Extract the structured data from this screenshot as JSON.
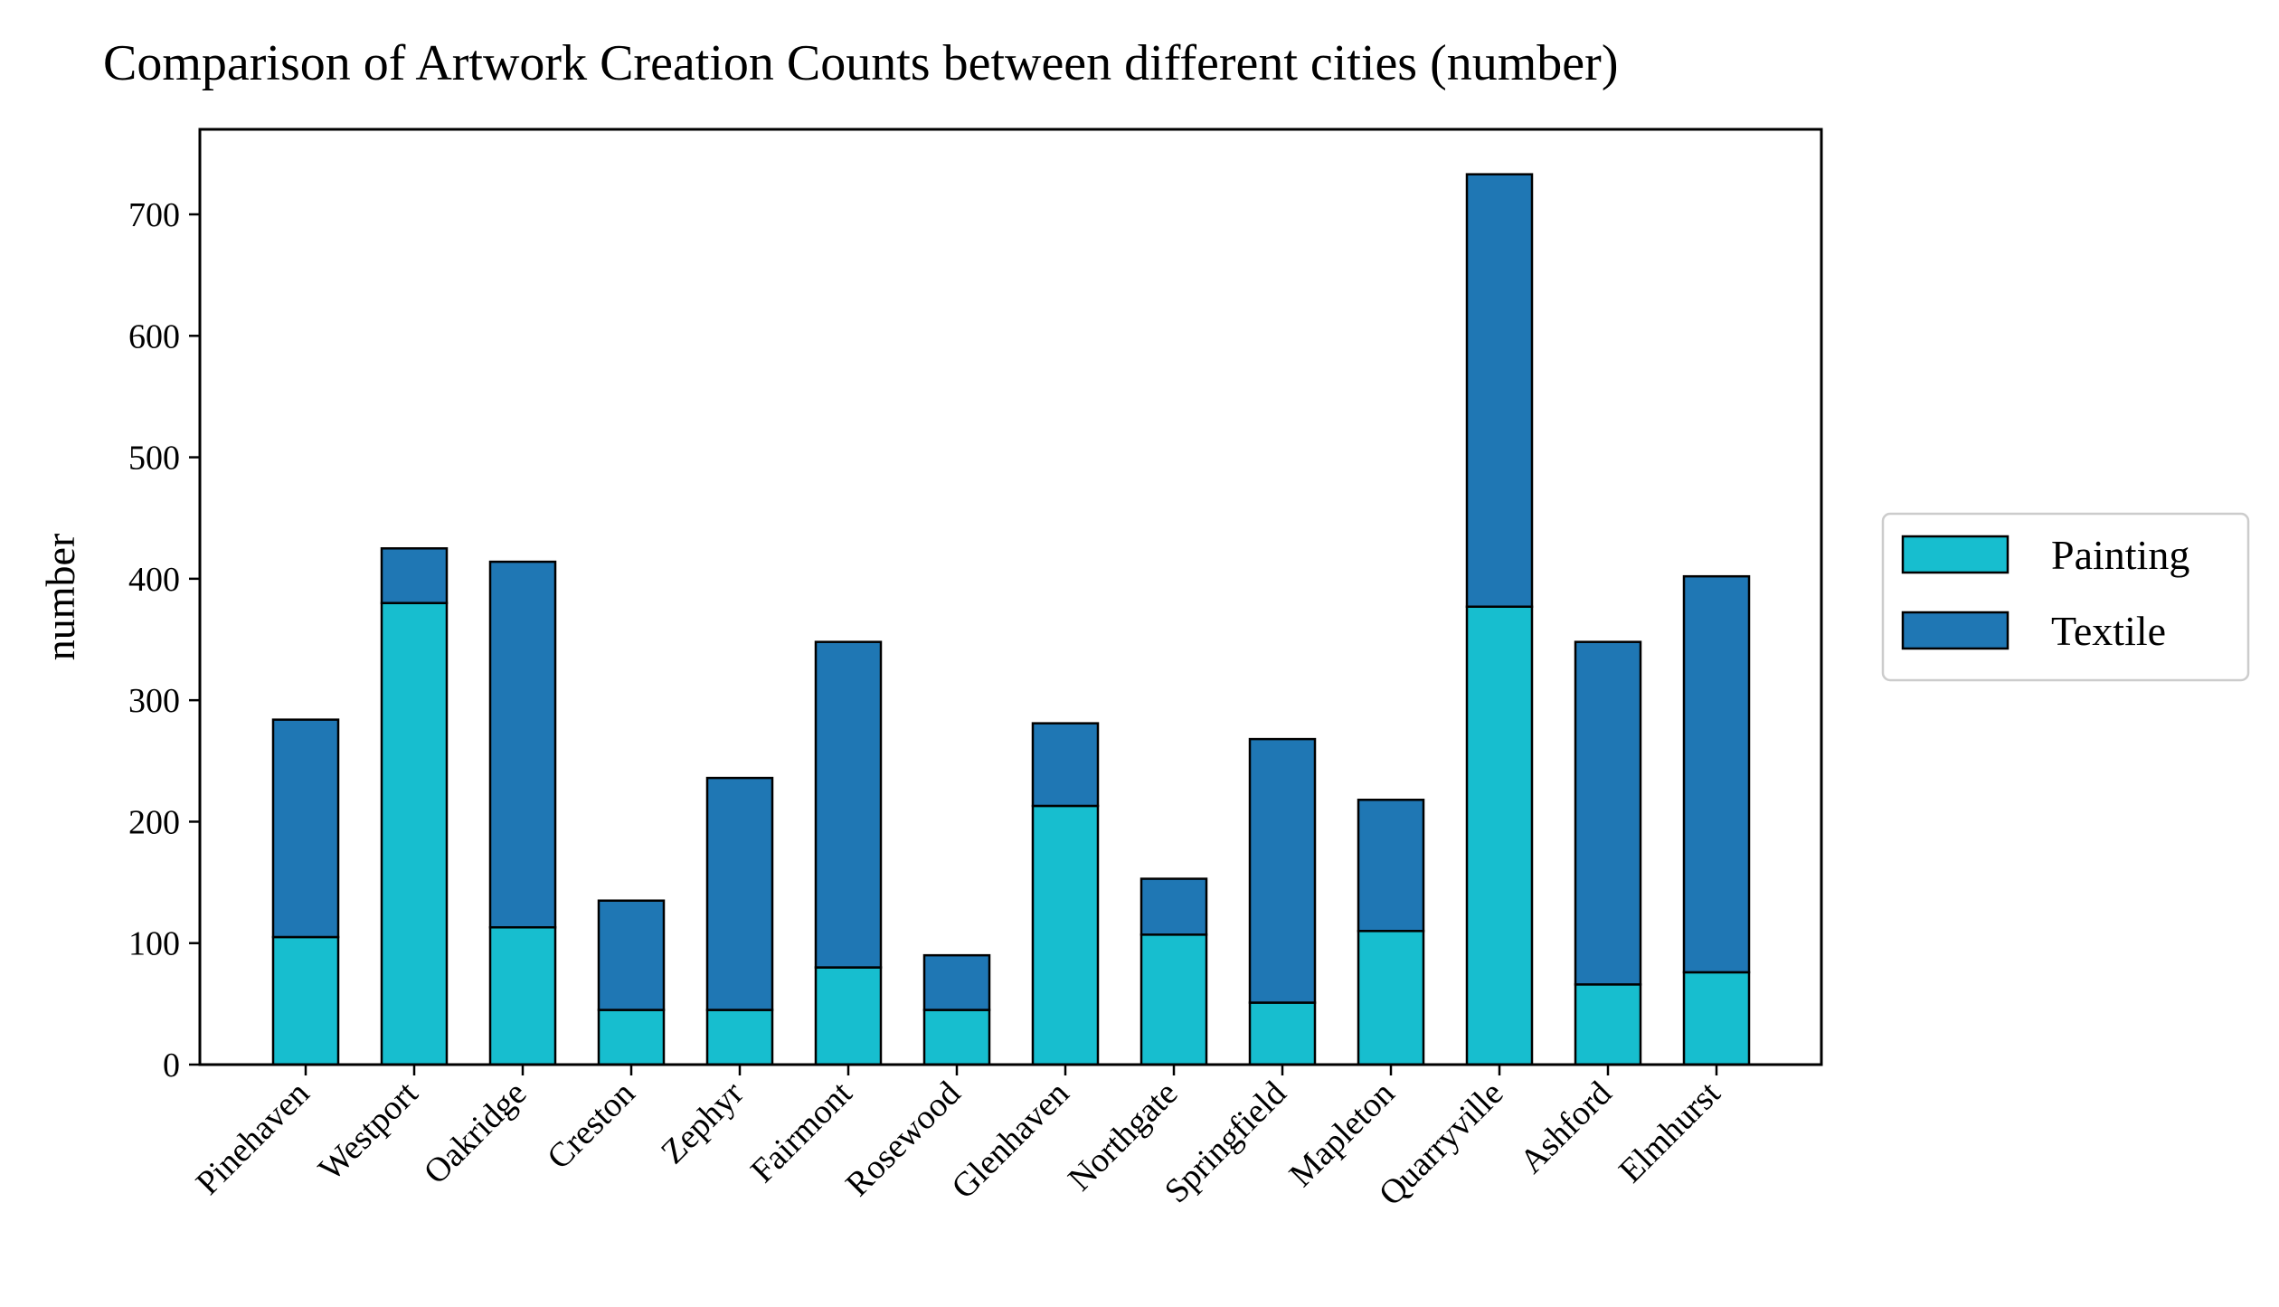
{
  "chart_data": {
    "type": "bar",
    "stacked": true,
    "title": "Comparison of Artwork Creation Counts between different cities (number)",
    "xlabel": "",
    "ylabel": "number",
    "ylim": [
      0,
      770
    ],
    "yticks": [
      0,
      100,
      200,
      300,
      400,
      500,
      600,
      700
    ],
    "grid": false,
    "legend_position": "right",
    "categories": [
      "Pinehaven",
      "Westport",
      "Oakridge",
      "Creston",
      "Zephyr",
      "Fairmont",
      "Rosewood",
      "Glenhaven",
      "Northgate",
      "Springfield",
      "Mapleton",
      "Quarryville",
      "Ashford",
      "Elmhurst"
    ],
    "series": [
      {
        "name": "Painting",
        "color": "#17becf",
        "values": [
          105,
          380,
          113,
          45,
          45,
          80,
          45,
          213,
          107,
          51,
          110,
          377,
          66,
          76
        ]
      },
      {
        "name": "Textile",
        "color": "#1f77b4",
        "values": [
          179,
          45,
          301,
          90,
          191,
          268,
          45,
          68,
          46,
          217,
          108,
          356,
          282,
          326
        ]
      }
    ]
  }
}
